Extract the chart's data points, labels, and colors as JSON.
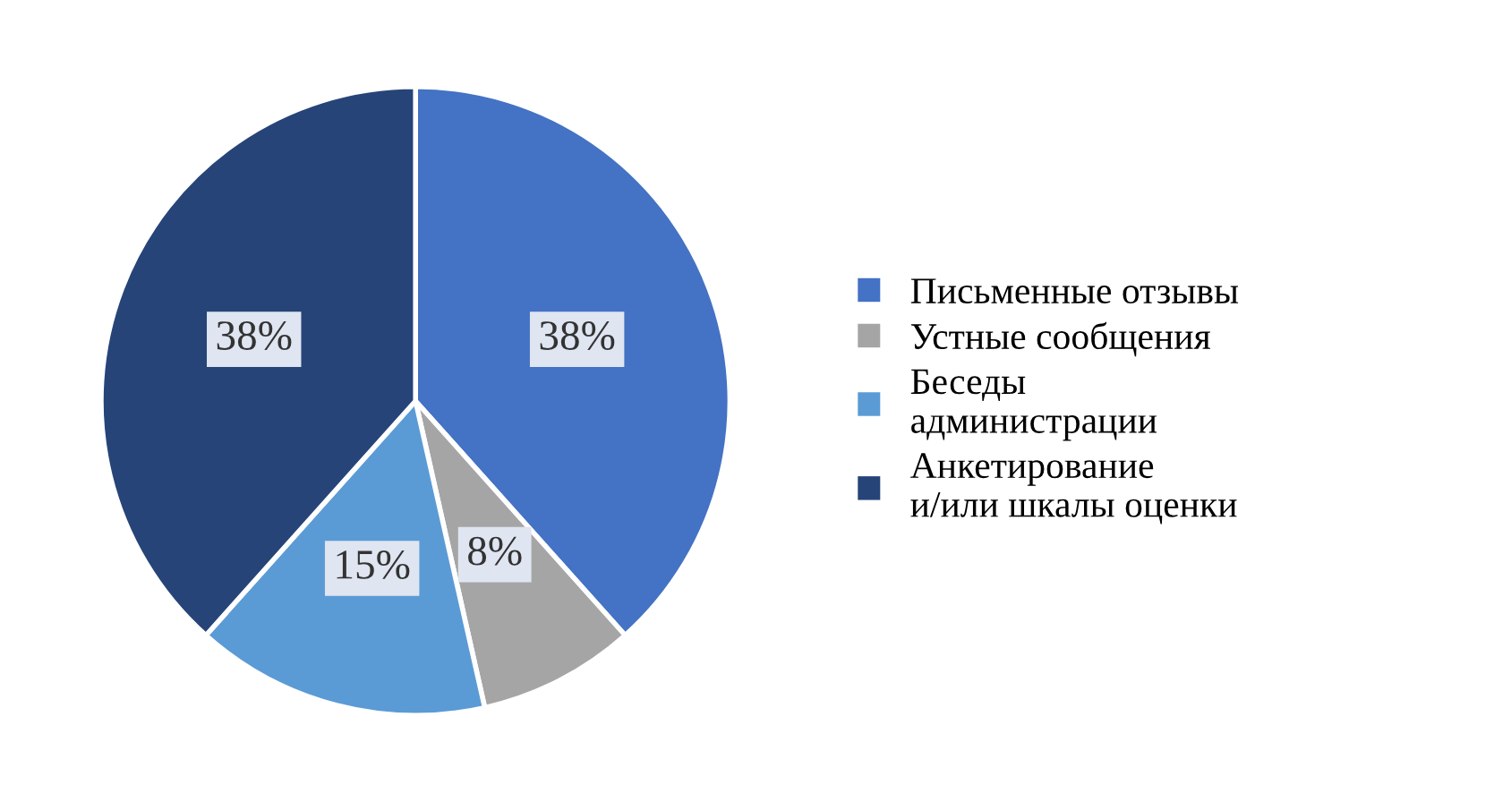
{
  "chart_data": {
    "type": "pie",
    "categories": [
      "Письменные отзывы",
      "Устные сообщения",
      "Беседы\nадминистрации",
      "Анкетирование\nи/или шкалы оценки"
    ],
    "values": [
      38,
      8,
      15,
      38
    ],
    "value_labels": [
      "38%",
      "8%",
      "15%",
      "38%"
    ],
    "colors": [
      "#4472c4",
      "#a5a5a5",
      "#5b9bd5",
      "#264478"
    ],
    "legend": "right"
  }
}
